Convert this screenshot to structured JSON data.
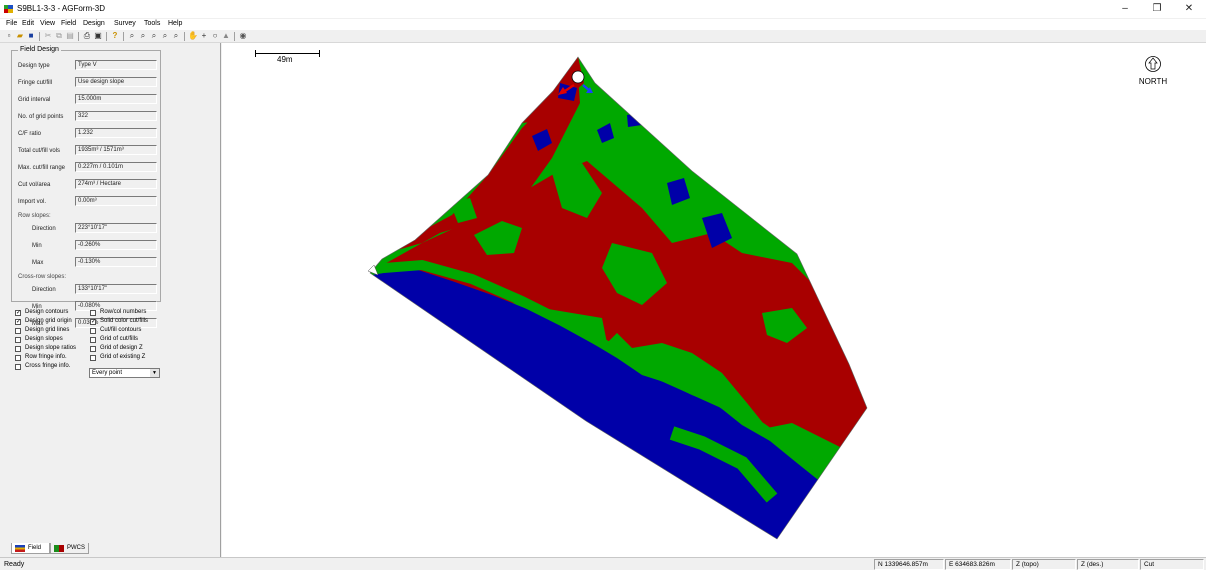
{
  "window": {
    "title": "S9BL1-3-3 - AGForm-3D",
    "controls": [
      "–",
      "❐",
      "✕"
    ]
  },
  "menu": [
    "File",
    "Edit",
    "View",
    "Field",
    "Design",
    "Survey",
    "Tools",
    "Help"
  ],
  "toolbar": {
    "icons": [
      "new-icon",
      "open-icon",
      "save-icon",
      "cut-icon",
      "copy-icon",
      "paste-icon",
      "print-icon",
      "print-preview-icon",
      "help-pointer-icon",
      "zoom-icon",
      "zoom-in-icon",
      "zoom-out-icon",
      "zoom-window-icon",
      "zoom-extents-icon",
      "pan-icon",
      "crosshair-icon",
      "rotate-icon",
      "tractor-icon",
      "help-icon"
    ]
  },
  "field_design": {
    "legend": "Field Design",
    "rows": [
      {
        "label": "Design type",
        "value": "Type V"
      },
      {
        "label": "Fringe cut/fill",
        "value": "Use design slope"
      },
      {
        "label": "Grid interval",
        "value": "15.000m"
      },
      {
        "label": "No. of grid points",
        "value": "322"
      },
      {
        "label": "C/F ratio",
        "value": "1.232"
      },
      {
        "label": "Total cut/fill vols",
        "value": "1935m³ / 1571m³"
      },
      {
        "label": "Max. cut/fill range",
        "value": "0.227m / 0.101m"
      },
      {
        "label": "Cut vol/area",
        "value": "274m³ / Hectare"
      },
      {
        "label": "Import vol.",
        "value": "0.00m³"
      }
    ],
    "row_slopes": {
      "title": "Row slopes:",
      "rows": [
        {
          "label": "Direction",
          "value": "223°10'17\""
        },
        {
          "label": "Min",
          "value": "-0.260%"
        },
        {
          "label": "Max",
          "value": "-0.130%"
        }
      ]
    },
    "cross_row_slopes": {
      "title": "Cross-row slopes:",
      "rows": [
        {
          "label": "Direction",
          "value": "133°10'17\""
        },
        {
          "label": "Min",
          "value": "-0.080%"
        },
        {
          "label": "Max",
          "value": "0.030%"
        }
      ]
    }
  },
  "options": [
    {
      "label": "Design contours",
      "checked": true
    },
    {
      "label": "Row/col numbers",
      "checked": false
    },
    {
      "label": "Design grid origin",
      "checked": true
    },
    {
      "label": "Solid color cut/fills",
      "checked": true
    },
    {
      "label": "Design grid lines",
      "checked": false
    },
    {
      "label": "Cut/fill contours",
      "checked": false
    },
    {
      "label": "Design slopes",
      "checked": false
    },
    {
      "label": "Grid of cut/fills",
      "checked": false
    },
    {
      "label": "Design slope ratios",
      "checked": false
    },
    {
      "label": "Grid of design Z",
      "checked": false
    },
    {
      "label": "Row fringe info.",
      "checked": false
    },
    {
      "label": "Grid of existing Z",
      "checked": false
    },
    {
      "label": "Cross fringe info.",
      "checked": false
    }
  ],
  "grid_select": {
    "value": "Every point"
  },
  "tabs": [
    {
      "label": "Field",
      "active": true
    },
    {
      "label": "PWCS",
      "active": false
    }
  ],
  "map": {
    "scale_label": "49m",
    "north_label": "NORTH",
    "colors": {
      "cut": "#a80000",
      "fill": "#0000a8",
      "ongrade": "#00a800"
    }
  },
  "status": {
    "text": "Ready",
    "northing": "N 1339646.857m",
    "easting": "E 634683.826m",
    "z_topo": "Z (topo)",
    "z_des": "Z (des.)",
    "mode": "Cut"
  }
}
